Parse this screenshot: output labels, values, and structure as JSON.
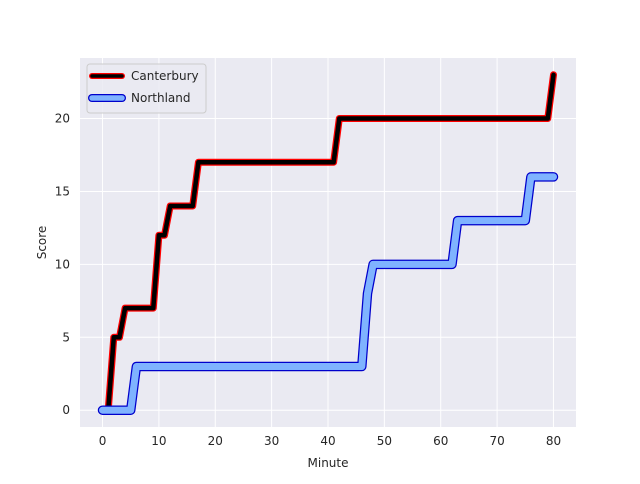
{
  "chart_data": {
    "type": "line",
    "title": "",
    "xlabel": "Minute",
    "ylabel": "Score",
    "xlim": [
      -4,
      84
    ],
    "ylim": [
      -1.15,
      24.15
    ],
    "xticks": [
      0,
      10,
      20,
      30,
      40,
      50,
      60,
      70,
      80
    ],
    "yticks": [
      0,
      5,
      10,
      15,
      20
    ],
    "grid": true,
    "legend_position": "upper-left",
    "background": "#eaeaf2",
    "series": [
      {
        "name": "Canterbury",
        "color": "#000000",
        "edge_color": "#ff0000",
        "style": "thick",
        "x": [
          1,
          2,
          3,
          4,
          9,
          10,
          11,
          12,
          13,
          16,
          17,
          41,
          42,
          79,
          80
        ],
        "y": [
          0,
          5,
          5,
          7,
          7,
          12,
          12,
          14,
          14,
          14,
          17,
          17,
          20,
          20,
          23
        ]
      },
      {
        "name": "Northland",
        "color": "#7fb3ff",
        "edge_color": "#0000cc",
        "style": "outlined",
        "x": [
          0,
          5,
          6,
          46,
          47,
          48,
          62,
          63,
          75,
          76,
          80
        ],
        "y": [
          0,
          0,
          3,
          3,
          8,
          10,
          10,
          13,
          13,
          16,
          16
        ]
      }
    ]
  }
}
